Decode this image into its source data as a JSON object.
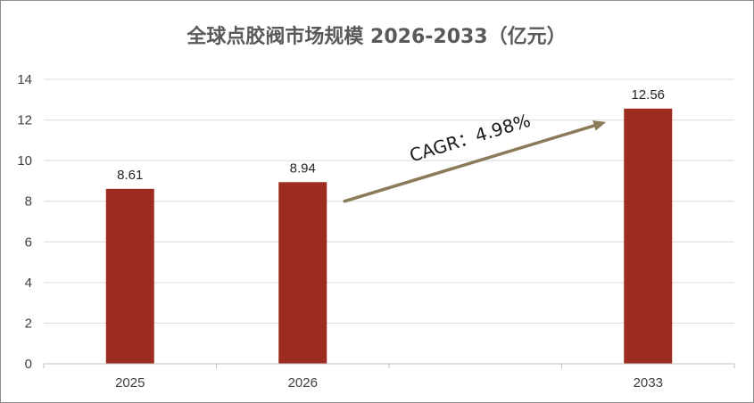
{
  "chart_data": {
    "type": "bar",
    "title": "全球点胶阀市场规模 2026-2033（亿元）",
    "categories": [
      "2025",
      "2026",
      "",
      "2033"
    ],
    "values": [
      8.61,
      8.94,
      null,
      12.56
    ],
    "data_labels": [
      "8.61",
      "8.94",
      "",
      "12.56"
    ],
    "ylim": [
      0,
      14
    ],
    "yticks": [
      "0",
      "2",
      "4",
      "6",
      "8",
      "10",
      "12",
      "14"
    ],
    "grid": true,
    "bar_color": "#9b2c1f",
    "annotation": {
      "text": "CAGR：4.98%",
      "arrow_color": "#8b7a5a"
    }
  }
}
